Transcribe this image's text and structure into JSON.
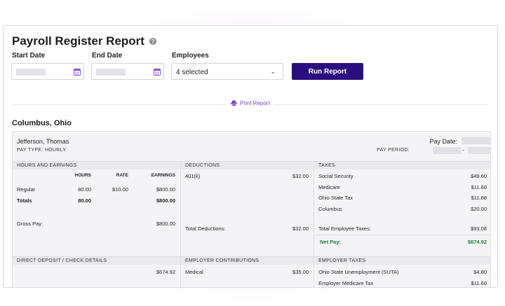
{
  "header": {
    "title": "Payroll Register Report",
    "help_icon": "?"
  },
  "filters": {
    "start_label": "Start Date",
    "end_label": "End Date",
    "employees_label": "Employees",
    "employees_value": "4 selected",
    "run_label": "Run Report"
  },
  "print_label": "Print Report",
  "location": "Columbus, Ohio",
  "employee": {
    "name": "Jefferson, Thomas",
    "pay_type": "PAY TYPE: HOURLY",
    "pay_date_label": "Pay Date:",
    "pay_period_label": "PAY PERIOD:",
    "period_separator": "-"
  },
  "hours": {
    "header": "HOURS AND EARNINGS",
    "col_hours": "HOURS",
    "col_rate": "RATE",
    "col_earnings": "EARNINGS",
    "regular_label": "Regular",
    "regular_hours": "80.00",
    "regular_rate": "$10.00",
    "regular_earnings": "$800.00",
    "totals_label": "Totals",
    "totals_hours": "80.00",
    "totals_earnings": "$800.00",
    "gross_label": "Gross Pay:",
    "gross_value": "$800.00"
  },
  "deductions": {
    "header": "DEDUCTIONS",
    "item_label": "401(k)",
    "item_value": "$32.00",
    "total_label": "Total Deductions:",
    "total_value": "$32.00"
  },
  "taxes": {
    "header": "TAXES",
    "items": [
      {
        "label": "Social Security",
        "value": "$49.60"
      },
      {
        "label": "Medicare",
        "value": "$11.60"
      },
      {
        "label": "Ohio State Tax",
        "value": "$11.88"
      },
      {
        "label": "Columbus",
        "value": "$20.00"
      }
    ],
    "total_label": "Total Employee Taxes:",
    "total_value": "$93.08",
    "net_label": "Net Pay:",
    "net_value": "$674.92"
  },
  "direct_deposit": {
    "header": "DIRECT DEPOSIT / CHECK DETAILS",
    "value": "$674.92"
  },
  "employer_contrib": {
    "header": "EMPLOYER CONTRIBUTIONS",
    "item_label": "Medical",
    "item_value": "$35.00"
  },
  "employer_taxes": {
    "header": "EMPLOYER TAXES",
    "items": [
      {
        "label": "Ohio State Unemployment (SUTA)",
        "value": "$4.80"
      },
      {
        "label": "Employer Medicare Tax",
        "value": "$11.60"
      }
    ]
  },
  "colors": {
    "accent": "#2a0e7d",
    "print": "#7b3fc8",
    "net_pay": "#1f7a3d"
  }
}
